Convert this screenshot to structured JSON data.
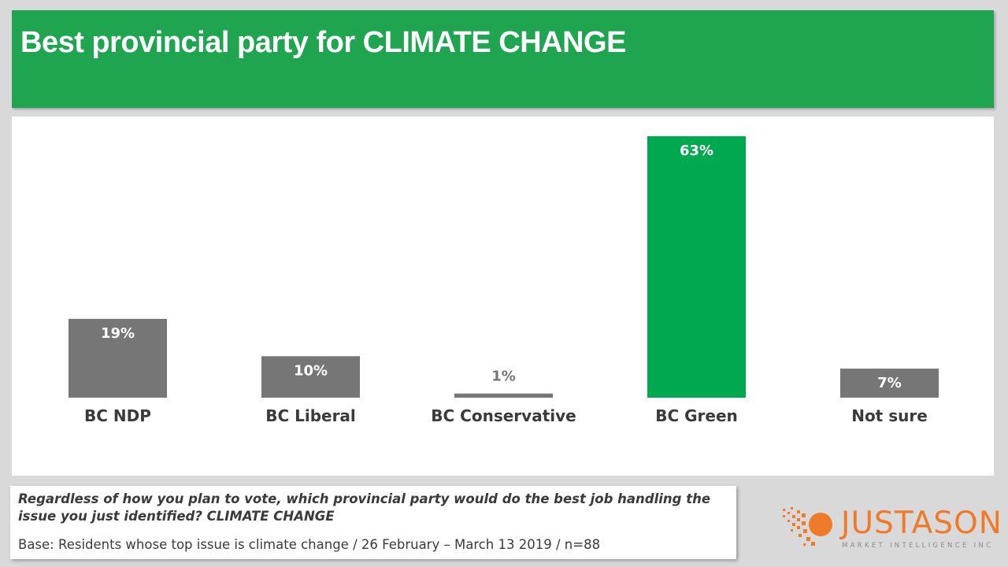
{
  "header": {
    "title": "Best provincial party for CLIMATE CHANGE"
  },
  "chart_data": {
    "type": "bar",
    "categories": [
      "BC NDP",
      "BC Liberal",
      "BC Conservative",
      "BC Green",
      "Not sure"
    ],
    "values": [
      19,
      10,
      1,
      63,
      7
    ],
    "value_labels": [
      "19%",
      "10%",
      "1%",
      "63%",
      "7%"
    ],
    "unit": "%",
    "colors": [
      "#767676",
      "#767676",
      "#767676",
      "#00a94f",
      "#767676"
    ],
    "label_colors": [
      "#ffffff",
      "#ffffff",
      "#767676",
      "#ffffff",
      "#ffffff"
    ],
    "ylim": [
      0,
      63
    ],
    "grid": false,
    "title": "",
    "xlabel": "",
    "ylabel": ""
  },
  "note": {
    "question": "Regardless of how you plan to vote, which provincial party would do the best job handling the issue you just identified? CLIMATE CHANGE",
    "base": "Base: Residents whose top issue is climate change / 26 February – March 13 2019 / n=88"
  },
  "logo": {
    "name": "JUSTASON",
    "tagline": "MARKET INTELLIGENCE INC",
    "accent": "#ef7a2a"
  }
}
